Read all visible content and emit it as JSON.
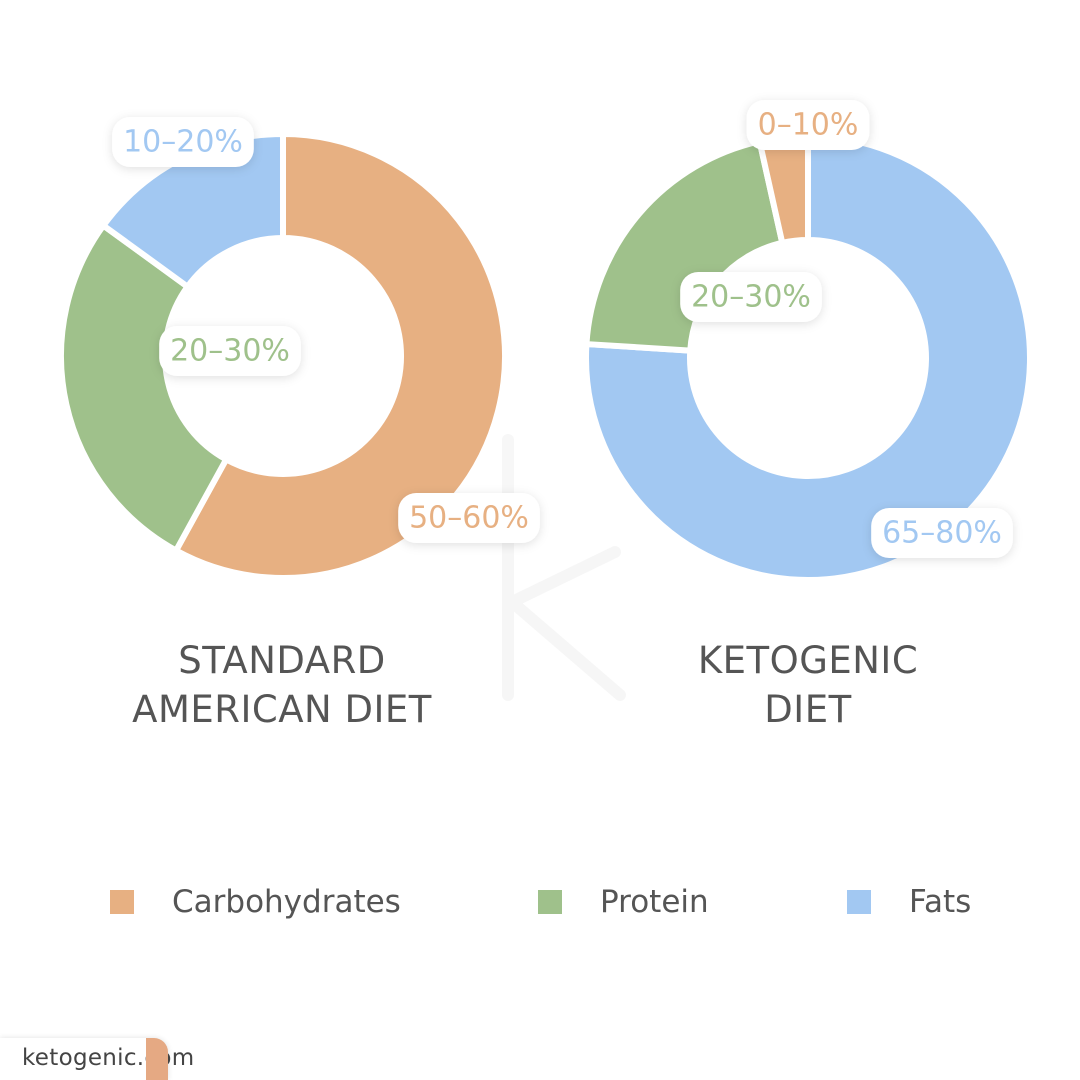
{
  "colors": {
    "carbohydrates": "#e7b082",
    "protein": "#9fc18b",
    "fats": "#a2c8f2",
    "title_text": "#555555"
  },
  "legend": {
    "items": [
      {
        "label": "Carbohydrates",
        "color": "#e7b082"
      },
      {
        "label": "Protein",
        "color": "#9fc18b"
      },
      {
        "label": "Fats",
        "color": "#a2c8f2"
      }
    ]
  },
  "chart_data": [
    {
      "type": "pie",
      "style": "donut",
      "title_lines": [
        "STANDARD",
        "AMERICAN DIET"
      ],
      "slices": [
        {
          "category": "Carbohydrates",
          "label": "50–60%",
          "value": 58,
          "color": "#e7b082"
        },
        {
          "category": "Protein",
          "label": "20–30%",
          "value": 27,
          "color": "#9fc18b"
        },
        {
          "category": "Fats",
          "label": "10–20%",
          "value": 15,
          "color": "#a2c8f2"
        }
      ]
    },
    {
      "type": "pie",
      "style": "donut",
      "title_lines": [
        "KETOGENIC",
        "DIET"
      ],
      "slices": [
        {
          "category": "Fats",
          "label": "65–80%",
          "value": 76,
          "color": "#a2c8f2"
        },
        {
          "category": "Protein",
          "label": "20–30%",
          "value": 20.5,
          "color": "#9fc18b"
        },
        {
          "category": "Carbohydrates",
          "label": "0–10%",
          "value": 3.5,
          "color": "#e7b082"
        }
      ]
    }
  ],
  "brand": {
    "logo_text": "ketogenic.com"
  }
}
